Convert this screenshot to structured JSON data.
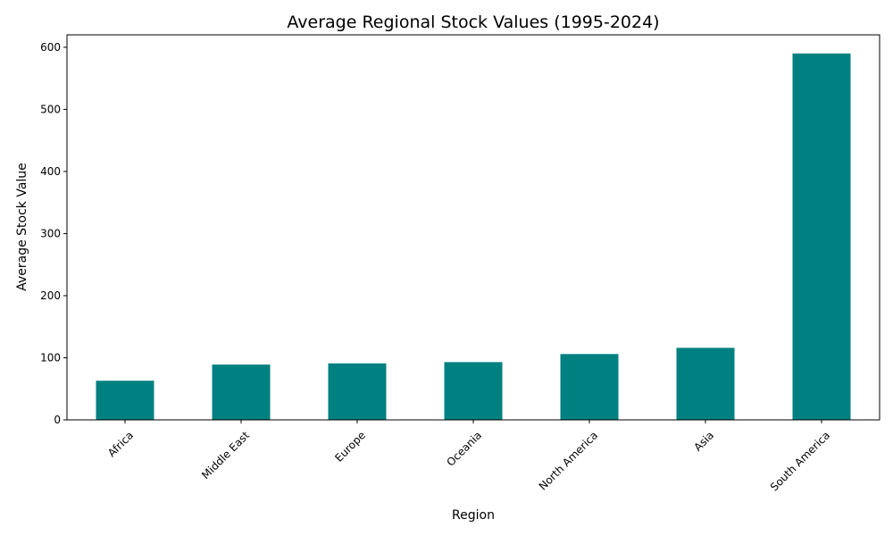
{
  "chart_data": {
    "type": "bar",
    "title": "Average Regional Stock Values (1995-2024)",
    "xlabel": "Region",
    "ylabel": "Average Stock Value",
    "categories": [
      "Africa",
      "Middle East",
      "Europe",
      "Oceania",
      "North America",
      "Asia",
      "South America"
    ],
    "values": [
      63,
      89,
      91,
      93,
      106,
      116,
      590
    ],
    "ylim": [
      0,
      620
    ],
    "yticks": [
      0,
      100,
      200,
      300,
      400,
      500,
      600
    ],
    "bar_color": "#008080",
    "grid": false,
    "legend": "none"
  }
}
